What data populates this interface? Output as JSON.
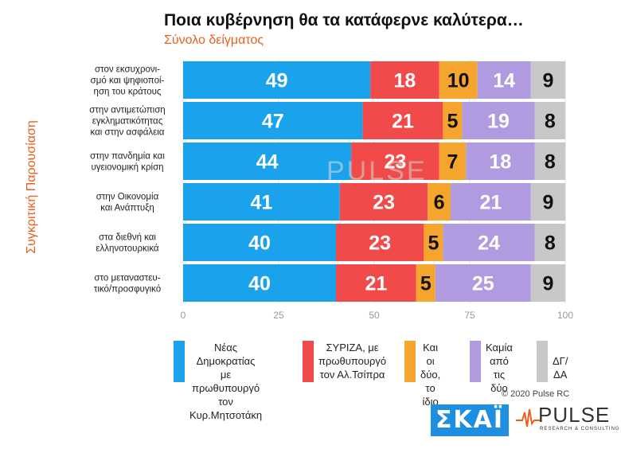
{
  "header": {
    "title": "Ποια κυβέρνηση θα τα κατάφερνε καλύτερα…",
    "subtitle": "Σύνολο δείγματος"
  },
  "copyright": "© 2020 Pulse RC",
  "logos": {
    "skai": "ΣΚΑΪ",
    "pulse": "PULSE",
    "pulse_sub": "RESEARCH & CONSULTING"
  },
  "watermark": "PULSE",
  "chart_data": {
    "type": "bar",
    "orientation": "horizontal",
    "stacked": true,
    "title": "Ποια κυβέρνηση θα τα κατάφερνε καλύτερα…",
    "subtitle": "Σύνολο δείγματος",
    "ylabel": "Συγκριτική Παρουσίαση",
    "xlim": [
      0,
      100
    ],
    "xticks": [
      0,
      25,
      50,
      75,
      100
    ],
    "grid": true,
    "legend_position": "bottom",
    "categories": [
      "στον εκσυχρονι-\nσμό και ψηφιοποί-\nηση του κράτους",
      "στην αντιμετώπιση\nεγκληματικότητας\nκαι στην ασφάλεια",
      "στην πανδημία και\nυγειονομική κρίση",
      "στην Οικονομία\nκαι Ανάπτυξη",
      "στα διεθνή και\nελληνοτουρκικά",
      "στο μεταναστευ-\nτικό/προσφυγικό"
    ],
    "series": [
      {
        "name": "Νέας Δημοκρατίας\nμε πρωθυπουργό\nτον Κυρ.Μητσοτάκη",
        "color": "#1aa3ec",
        "label_color": "#ffffff",
        "values": [
          49,
          47,
          44,
          41,
          40,
          40
        ]
      },
      {
        "name": "ΣΥΡΙΖΑ, με\nπρωθυπουργό\nτον Αλ.Τσίπρα",
        "color": "#f04a4a",
        "label_color": "#ffffff",
        "values": [
          18,
          21,
          23,
          23,
          23,
          21
        ]
      },
      {
        "name": "Και οι\nδύο,\nτο ίδιο",
        "color": "#f5a52e",
        "label_color": "#111111",
        "values": [
          10,
          5,
          7,
          6,
          5,
          5
        ]
      },
      {
        "name": "Καμία\nαπό τις\nδύο",
        "color": "#b19be0",
        "label_color": "#ffffff",
        "values": [
          14,
          19,
          18,
          21,
          24,
          25
        ]
      },
      {
        "name": "ΔΓ/ΔΑ",
        "color": "#c8c8c8",
        "label_color": "#111111",
        "values": [
          9,
          8,
          8,
          9,
          8,
          9
        ]
      }
    ]
  }
}
